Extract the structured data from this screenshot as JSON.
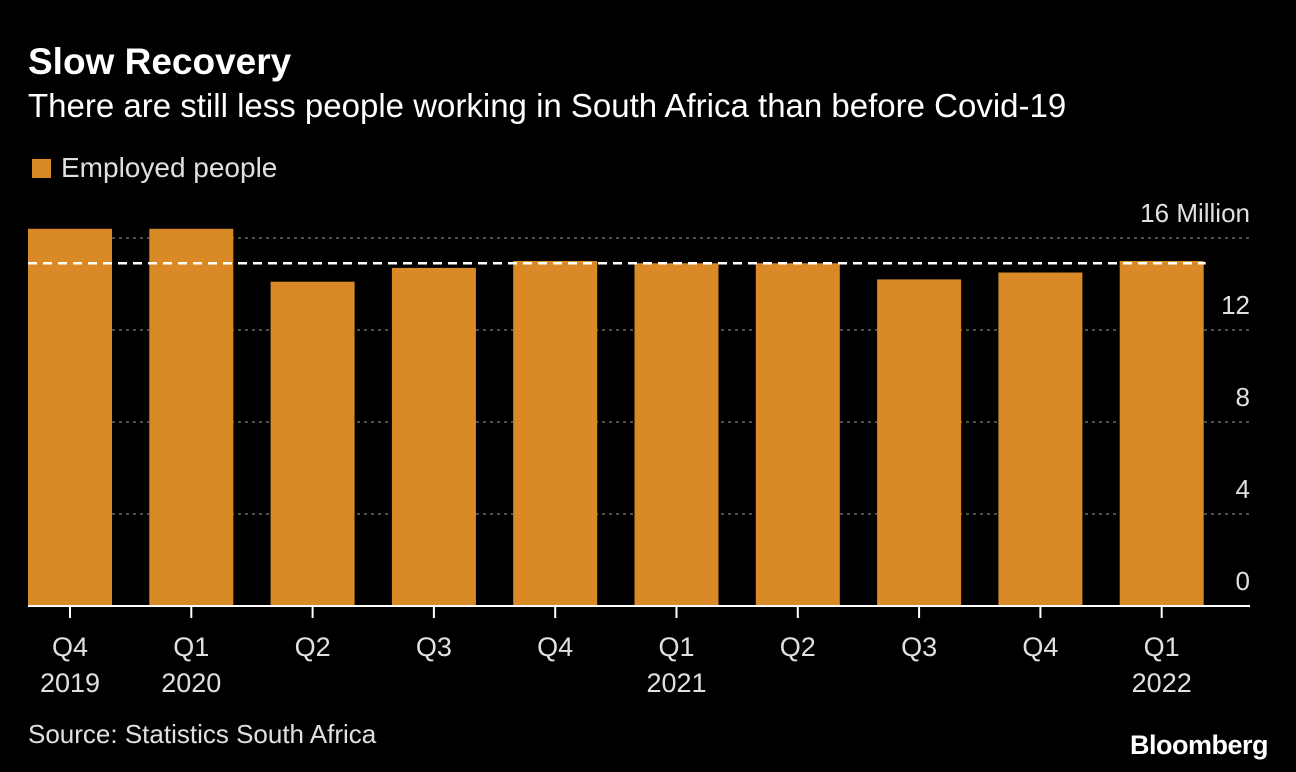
{
  "colors": {
    "bar": "#d98a26",
    "background": "#000000",
    "grid": "#6b6b6b",
    "reference_line": "#ffffff",
    "text": "#ffffff",
    "muted_text": "#e0e0e0"
  },
  "header": {
    "title": "Slow Recovery",
    "subtitle": "There are still less people working in South Africa than before Covid-19"
  },
  "legend": {
    "label": "Employed people"
  },
  "footer": {
    "source": "Source: Statistics South Africa",
    "brand": "Bloomberg"
  },
  "chart_data": {
    "type": "bar",
    "title": "Slow Recovery",
    "subtitle": "There are still less people working in South Africa than before Covid-19",
    "categories": [
      "Q4",
      "Q1",
      "Q2",
      "Q3",
      "Q4",
      "Q1",
      "Q2",
      "Q3",
      "Q4",
      "Q1"
    ],
    "year_labels": [
      "2019",
      "2020",
      "",
      "",
      "",
      "2021",
      "",
      "",
      "",
      "2022"
    ],
    "series": [
      {
        "name": "Employed people",
        "values": [
          16.4,
          16.4,
          14.1,
          14.7,
          15.0,
          14.9,
          14.9,
          14.2,
          14.5,
          15.0
        ]
      }
    ],
    "ylim": [
      0,
      16
    ],
    "y_ticks": [
      0,
      4,
      8,
      12,
      16
    ],
    "y_tick_labels": [
      "0",
      "4",
      "8",
      "12",
      "16 Million"
    ],
    "y_axis_side": "right",
    "reference_line": {
      "value": 14.9,
      "style": "dashed"
    },
    "grid": true,
    "legend_position": "top-left",
    "xlabel": "",
    "ylabel": ""
  }
}
